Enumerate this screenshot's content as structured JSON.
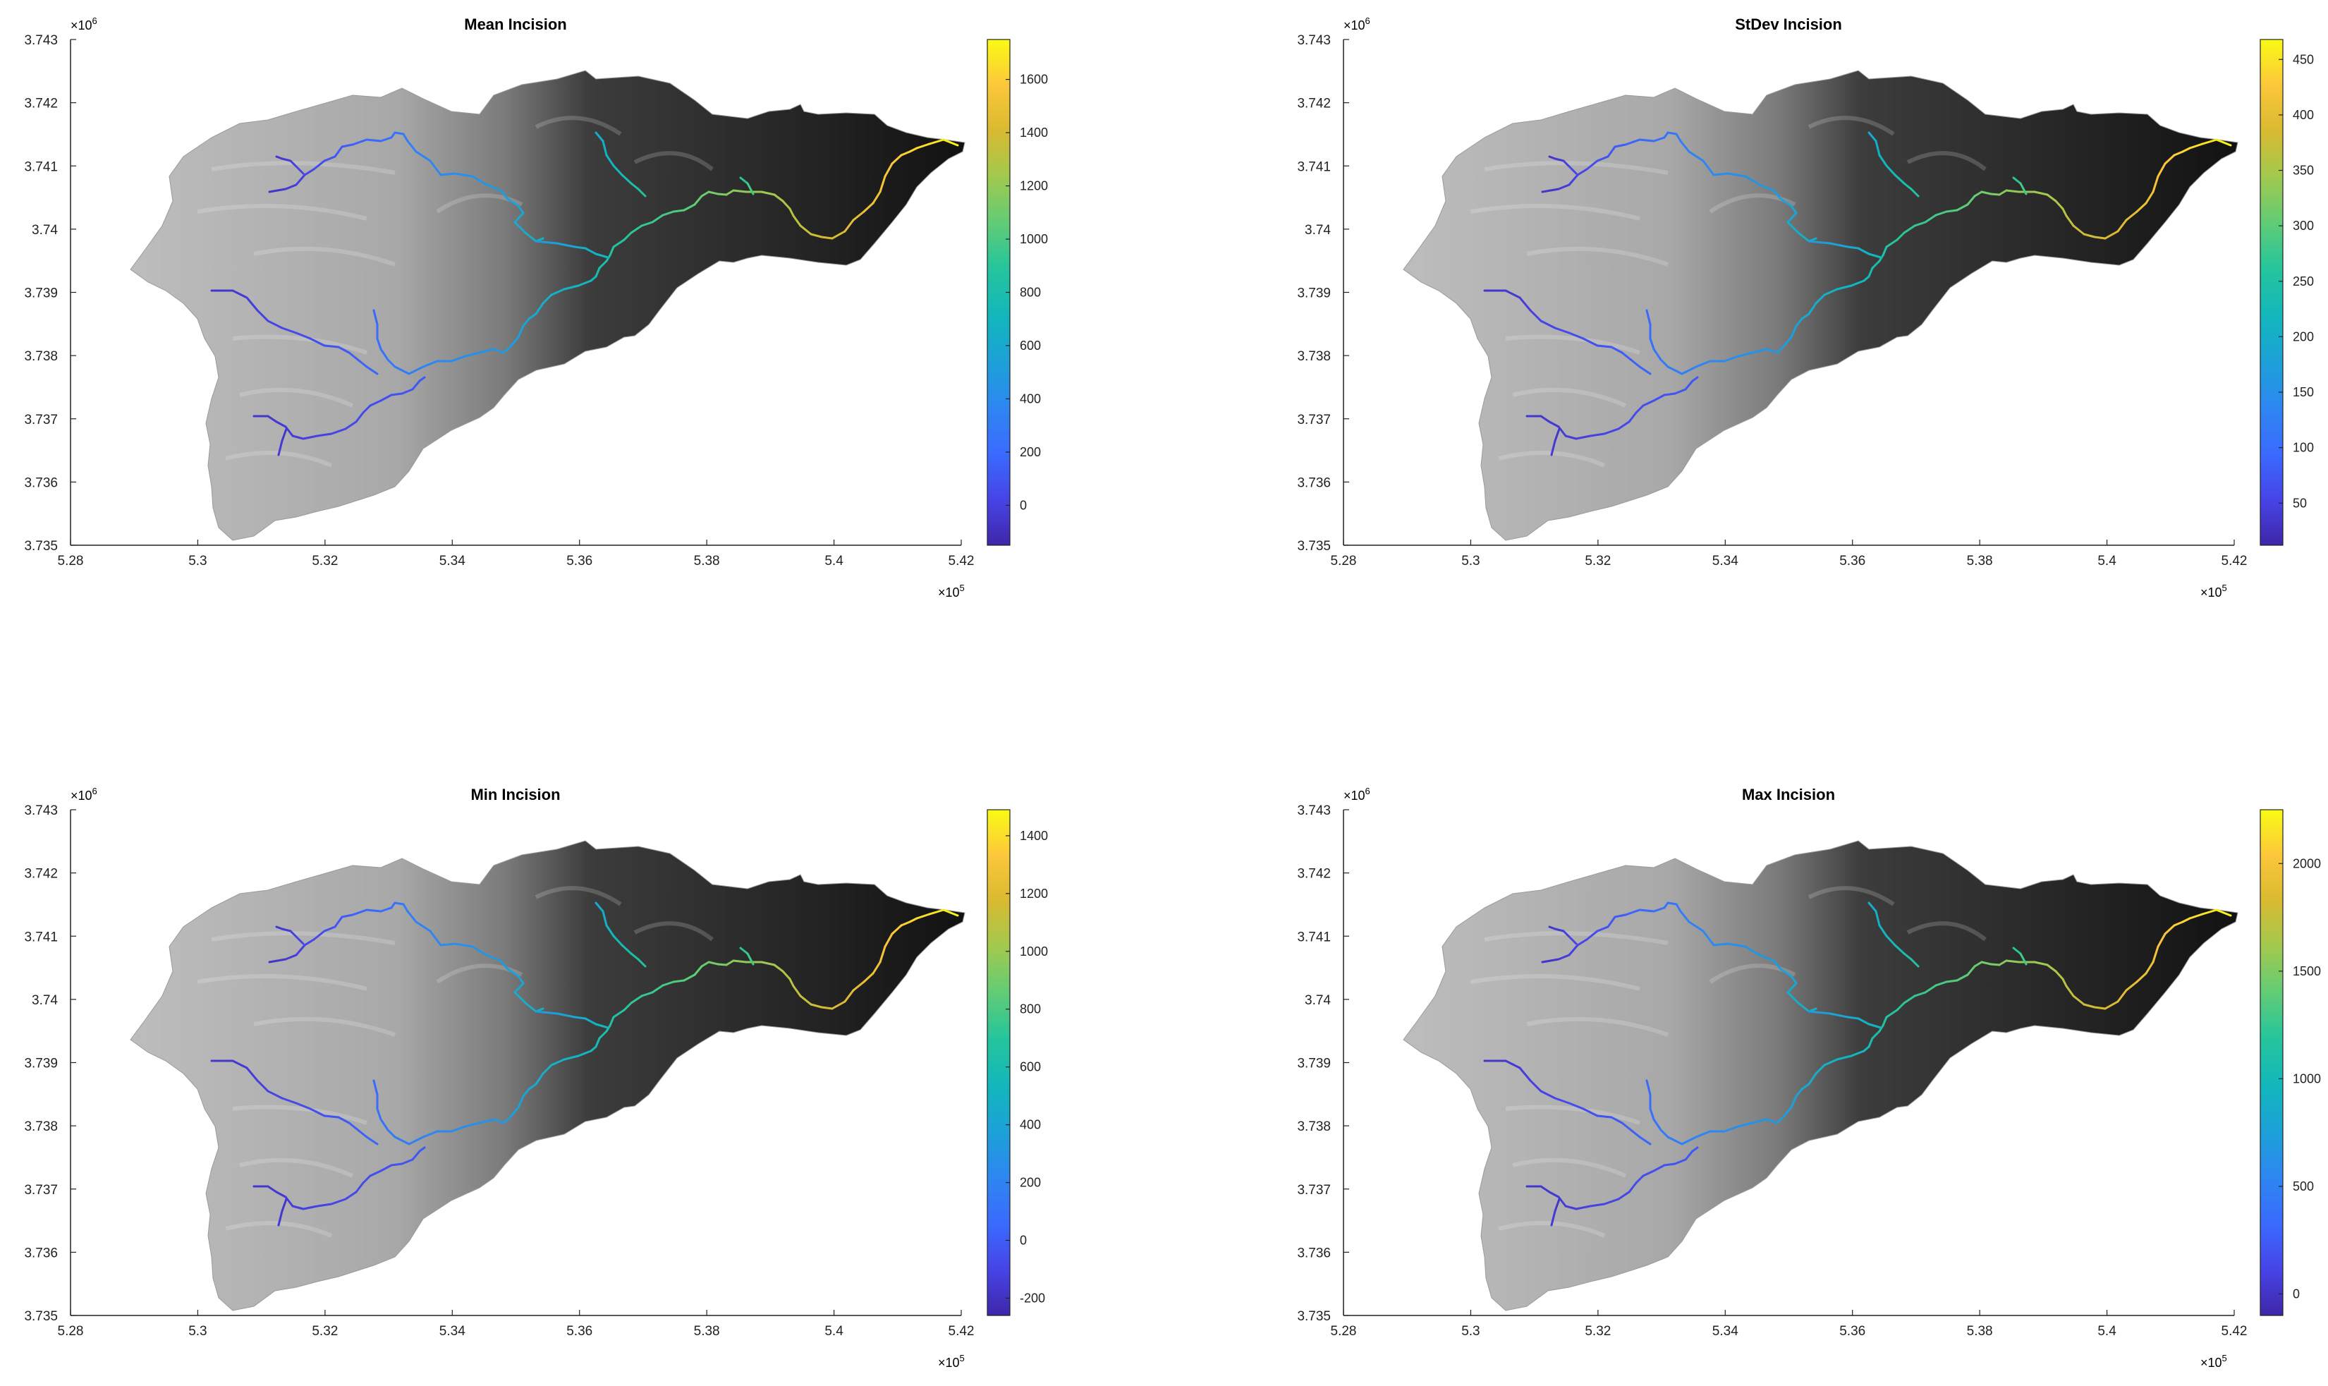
{
  "figure": {
    "panels": [
      {
        "title": "Mean Incision",
        "x_ticks": [
          "5.28",
          "5.3",
          "5.32",
          "5.34",
          "5.36",
          "5.38",
          "5.4",
          "5.42"
        ],
        "y_ticks": [
          "3.743",
          "3.742",
          "3.741",
          "3.74",
          "3.739",
          "3.738",
          "3.737",
          "3.736",
          "3.735"
        ],
        "x_exponent": "5",
        "y_exponent": "6",
        "colorbar": {
          "ticks": [
            "1600",
            "1400",
            "1200",
            "1000",
            "800",
            "600",
            "400",
            "200",
            "0"
          ],
          "range": [
            -150,
            1750
          ]
        }
      },
      {
        "title": "StDev Incision",
        "x_ticks": [
          "5.28",
          "5.3",
          "5.32",
          "5.34",
          "5.36",
          "5.38",
          "5.4",
          "5.42"
        ],
        "y_ticks": [
          "3.743",
          "3.742",
          "3.741",
          "3.74",
          "3.739",
          "3.738",
          "3.737",
          "3.736",
          "3.735"
        ],
        "x_exponent": "5",
        "y_exponent": "6",
        "colorbar": {
          "ticks": [
            "450",
            "400",
            "350",
            "300",
            "250",
            "200",
            "150",
            "100",
            "50"
          ],
          "range": [
            12,
            468
          ]
        }
      },
      {
        "title": "Min Incision",
        "x_ticks": [
          "5.28",
          "5.3",
          "5.32",
          "5.34",
          "5.36",
          "5.38",
          "5.4",
          "5.42"
        ],
        "y_ticks": [
          "3.743",
          "3.742",
          "3.741",
          "3.74",
          "3.739",
          "3.738",
          "3.737",
          "3.736",
          "3.735"
        ],
        "x_exponent": "5",
        "y_exponent": "6",
        "colorbar": {
          "ticks": [
            "1400",
            "1200",
            "1000",
            "800",
            "600",
            "400",
            "200",
            "0",
            "-200"
          ],
          "range": [
            -260,
            1490
          ]
        }
      },
      {
        "title": "Max Incision",
        "x_ticks": [
          "5.28",
          "5.3",
          "5.32",
          "5.34",
          "5.36",
          "5.38",
          "5.4",
          "5.42"
        ],
        "y_ticks": [
          "3.743",
          "3.742",
          "3.741",
          "3.74",
          "3.739",
          "3.738",
          "3.737",
          "3.736",
          "3.735"
        ],
        "x_exponent": "5",
        "y_exponent": "6",
        "colorbar": {
          "ticks": [
            "2000",
            "1500",
            "1000",
            "500",
            "0"
          ],
          "range": [
            -100,
            2250
          ]
        }
      }
    ],
    "colormap": "parula",
    "colors": {
      "parula": [
        "#3e26a8",
        "#4744e7",
        "#3a6afe",
        "#2e86f2",
        "#1da0d9",
        "#12b6bd",
        "#26c59b",
        "#63cc75",
        "#a2c94e",
        "#d9ba31",
        "#fcc73a",
        "#f9fb15"
      ],
      "terrain_light": "#b8b8b8",
      "terrain_dark": "#151515"
    }
  }
}
